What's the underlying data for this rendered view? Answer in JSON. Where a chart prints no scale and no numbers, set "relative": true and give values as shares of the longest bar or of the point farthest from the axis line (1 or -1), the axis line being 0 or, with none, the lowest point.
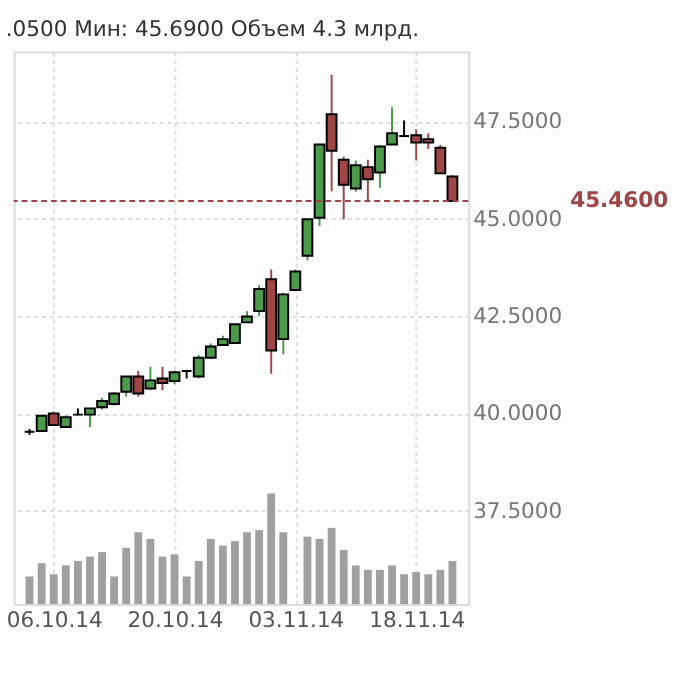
{
  "chart_data": [
    {
      "type": "candlestick",
      "title": ".0500 Мин: 45.6900 Объем 4.3 млрд.",
      "categories": [
        null,
        null,
        "06.10.14",
        null,
        null,
        null,
        null,
        null,
        null,
        null,
        null,
        null,
        "20.10.14",
        null,
        null,
        null,
        null,
        null,
        null,
        null,
        null,
        null,
        "03.11.14",
        null,
        null,
        null,
        null,
        null,
        null,
        null,
        null,
        null,
        "18.11.14",
        null,
        null,
        null
      ],
      "ohlc": [
        [
          39.53,
          39.6,
          39.45,
          39.53
        ],
        [
          39.55,
          39.95,
          39.55,
          39.94
        ],
        [
          40.0,
          40.05,
          39.7,
          39.7
        ],
        [
          39.65,
          39.95,
          39.63,
          39.9
        ],
        [
          39.97,
          40.13,
          39.95,
          39.97
        ],
        [
          39.97,
          40.13,
          39.65,
          40.13
        ],
        [
          40.16,
          40.4,
          40.1,
          40.32
        ],
        [
          40.24,
          40.55,
          40.2,
          40.51
        ],
        [
          40.56,
          40.95,
          40.43,
          40.95
        ],
        [
          40.95,
          41.09,
          40.43,
          40.51
        ],
        [
          40.64,
          41.2,
          40.6,
          40.85
        ],
        [
          40.9,
          41.2,
          40.6,
          40.78
        ],
        [
          40.83,
          41.1,
          40.75,
          41.06
        ],
        [
          41.09,
          41.12,
          40.9,
          41.09
        ],
        [
          40.95,
          41.5,
          40.9,
          41.43
        ],
        [
          41.43,
          41.8,
          41.43,
          41.72
        ],
        [
          41.76,
          42.0,
          41.76,
          41.91
        ],
        [
          41.81,
          42.3,
          41.81,
          42.29
        ],
        [
          42.34,
          42.63,
          42.34,
          42.49
        ],
        [
          42.63,
          43.3,
          42.5,
          43.2
        ],
        [
          43.45,
          43.7,
          41.02,
          41.62
        ],
        [
          41.91,
          43.1,
          41.52,
          43.06
        ],
        [
          43.17,
          43.7,
          43.17,
          43.65
        ],
        [
          44.05,
          45.0,
          43.93,
          44.99
        ],
        [
          45.03,
          46.91,
          44.82,
          46.91
        ],
        [
          47.69,
          48.7,
          45.71,
          46.75
        ],
        [
          46.52,
          46.6,
          44.99,
          45.88
        ],
        [
          45.78,
          46.5,
          45.7,
          46.38
        ],
        [
          46.33,
          46.52,
          45.45,
          46.02
        ],
        [
          46.19,
          46.9,
          45.8,
          46.86
        ],
        [
          46.91,
          47.87,
          46.91,
          47.2
        ],
        [
          47.13,
          47.53,
          47.1,
          47.13
        ],
        [
          47.15,
          47.3,
          46.5,
          46.96
        ],
        [
          47.05,
          47.2,
          46.8,
          46.96
        ],
        [
          46.83,
          46.9,
          46.17,
          46.17
        ],
        [
          46.09,
          46.12,
          45.45,
          45.46
        ]
      ],
      "colors": [
        "#000000",
        "#4a9a4a",
        "#a04545",
        "#4a9a4a",
        "#000000",
        "#4a9a4a",
        "#4a9a4a",
        "#4a9a4a",
        "#4a9a4a",
        "#a04545",
        "#4a9a4a",
        "#a04545",
        "#4a9a4a",
        "#000000",
        "#4a9a4a",
        "#4a9a4a",
        "#4a9a4a",
        "#4a9a4a",
        "#4a9a4a",
        "#4a9a4a",
        "#a04545",
        "#4a9a4a",
        "#4a9a4a",
        "#4a9a4a",
        "#4a9a4a",
        "#a04545",
        "#a04545",
        "#4a9a4a",
        "#a04545",
        "#4a9a4a",
        "#4a9a4a",
        "#000000",
        "#a04545",
        "#a04545",
        "#a04545",
        "#a04545"
      ],
      "ylim": [
        35.1,
        49.3
      ],
      "yticks": [
        {
          "value": 37.5,
          "label": "37.5000"
        },
        {
          "value": 40,
          "label": "40.0000"
        },
        {
          "value": 42.5,
          "label": "42.5000"
        },
        {
          "value": 45,
          "label": "45.0000"
        },
        {
          "value": 47.5,
          "label": "47.5000"
        }
      ],
      "grid": true,
      "ref_lines": [
        {
          "axis": "y",
          "value": 45.46,
          "label": "45.4600",
          "color": "#a04545"
        }
      ]
    },
    {
      "type": "bar",
      "relative": true,
      "color": "#a0a0a0",
      "tick_labels": false,
      "categories": [
        null,
        null,
        "06.10.14",
        null,
        null,
        null,
        null,
        null,
        null,
        null,
        null,
        null,
        "20.10.14",
        null,
        null,
        null,
        null,
        null,
        null,
        null,
        null,
        null,
        "03.11.14",
        null,
        null,
        null,
        null,
        null,
        null,
        null,
        null,
        null,
        "18.11.14",
        null,
        null,
        null
      ],
      "values": [
        0.25,
        0.37,
        0.27,
        0.35,
        0.39,
        0.43,
        0.47,
        0.25,
        0.51,
        0.65,
        0.59,
        0.43,
        0.45,
        0.25,
        0.39,
        0.59,
        0.53,
        0.57,
        0.65,
        0.67,
        1,
        0.65,
        null,
        0.61,
        0.59,
        0.69,
        0.49,
        0.35,
        0.31,
        0.31,
        0.35,
        0.27,
        0.29,
        0.27,
        0.31,
        0.39
      ]
    }
  ]
}
